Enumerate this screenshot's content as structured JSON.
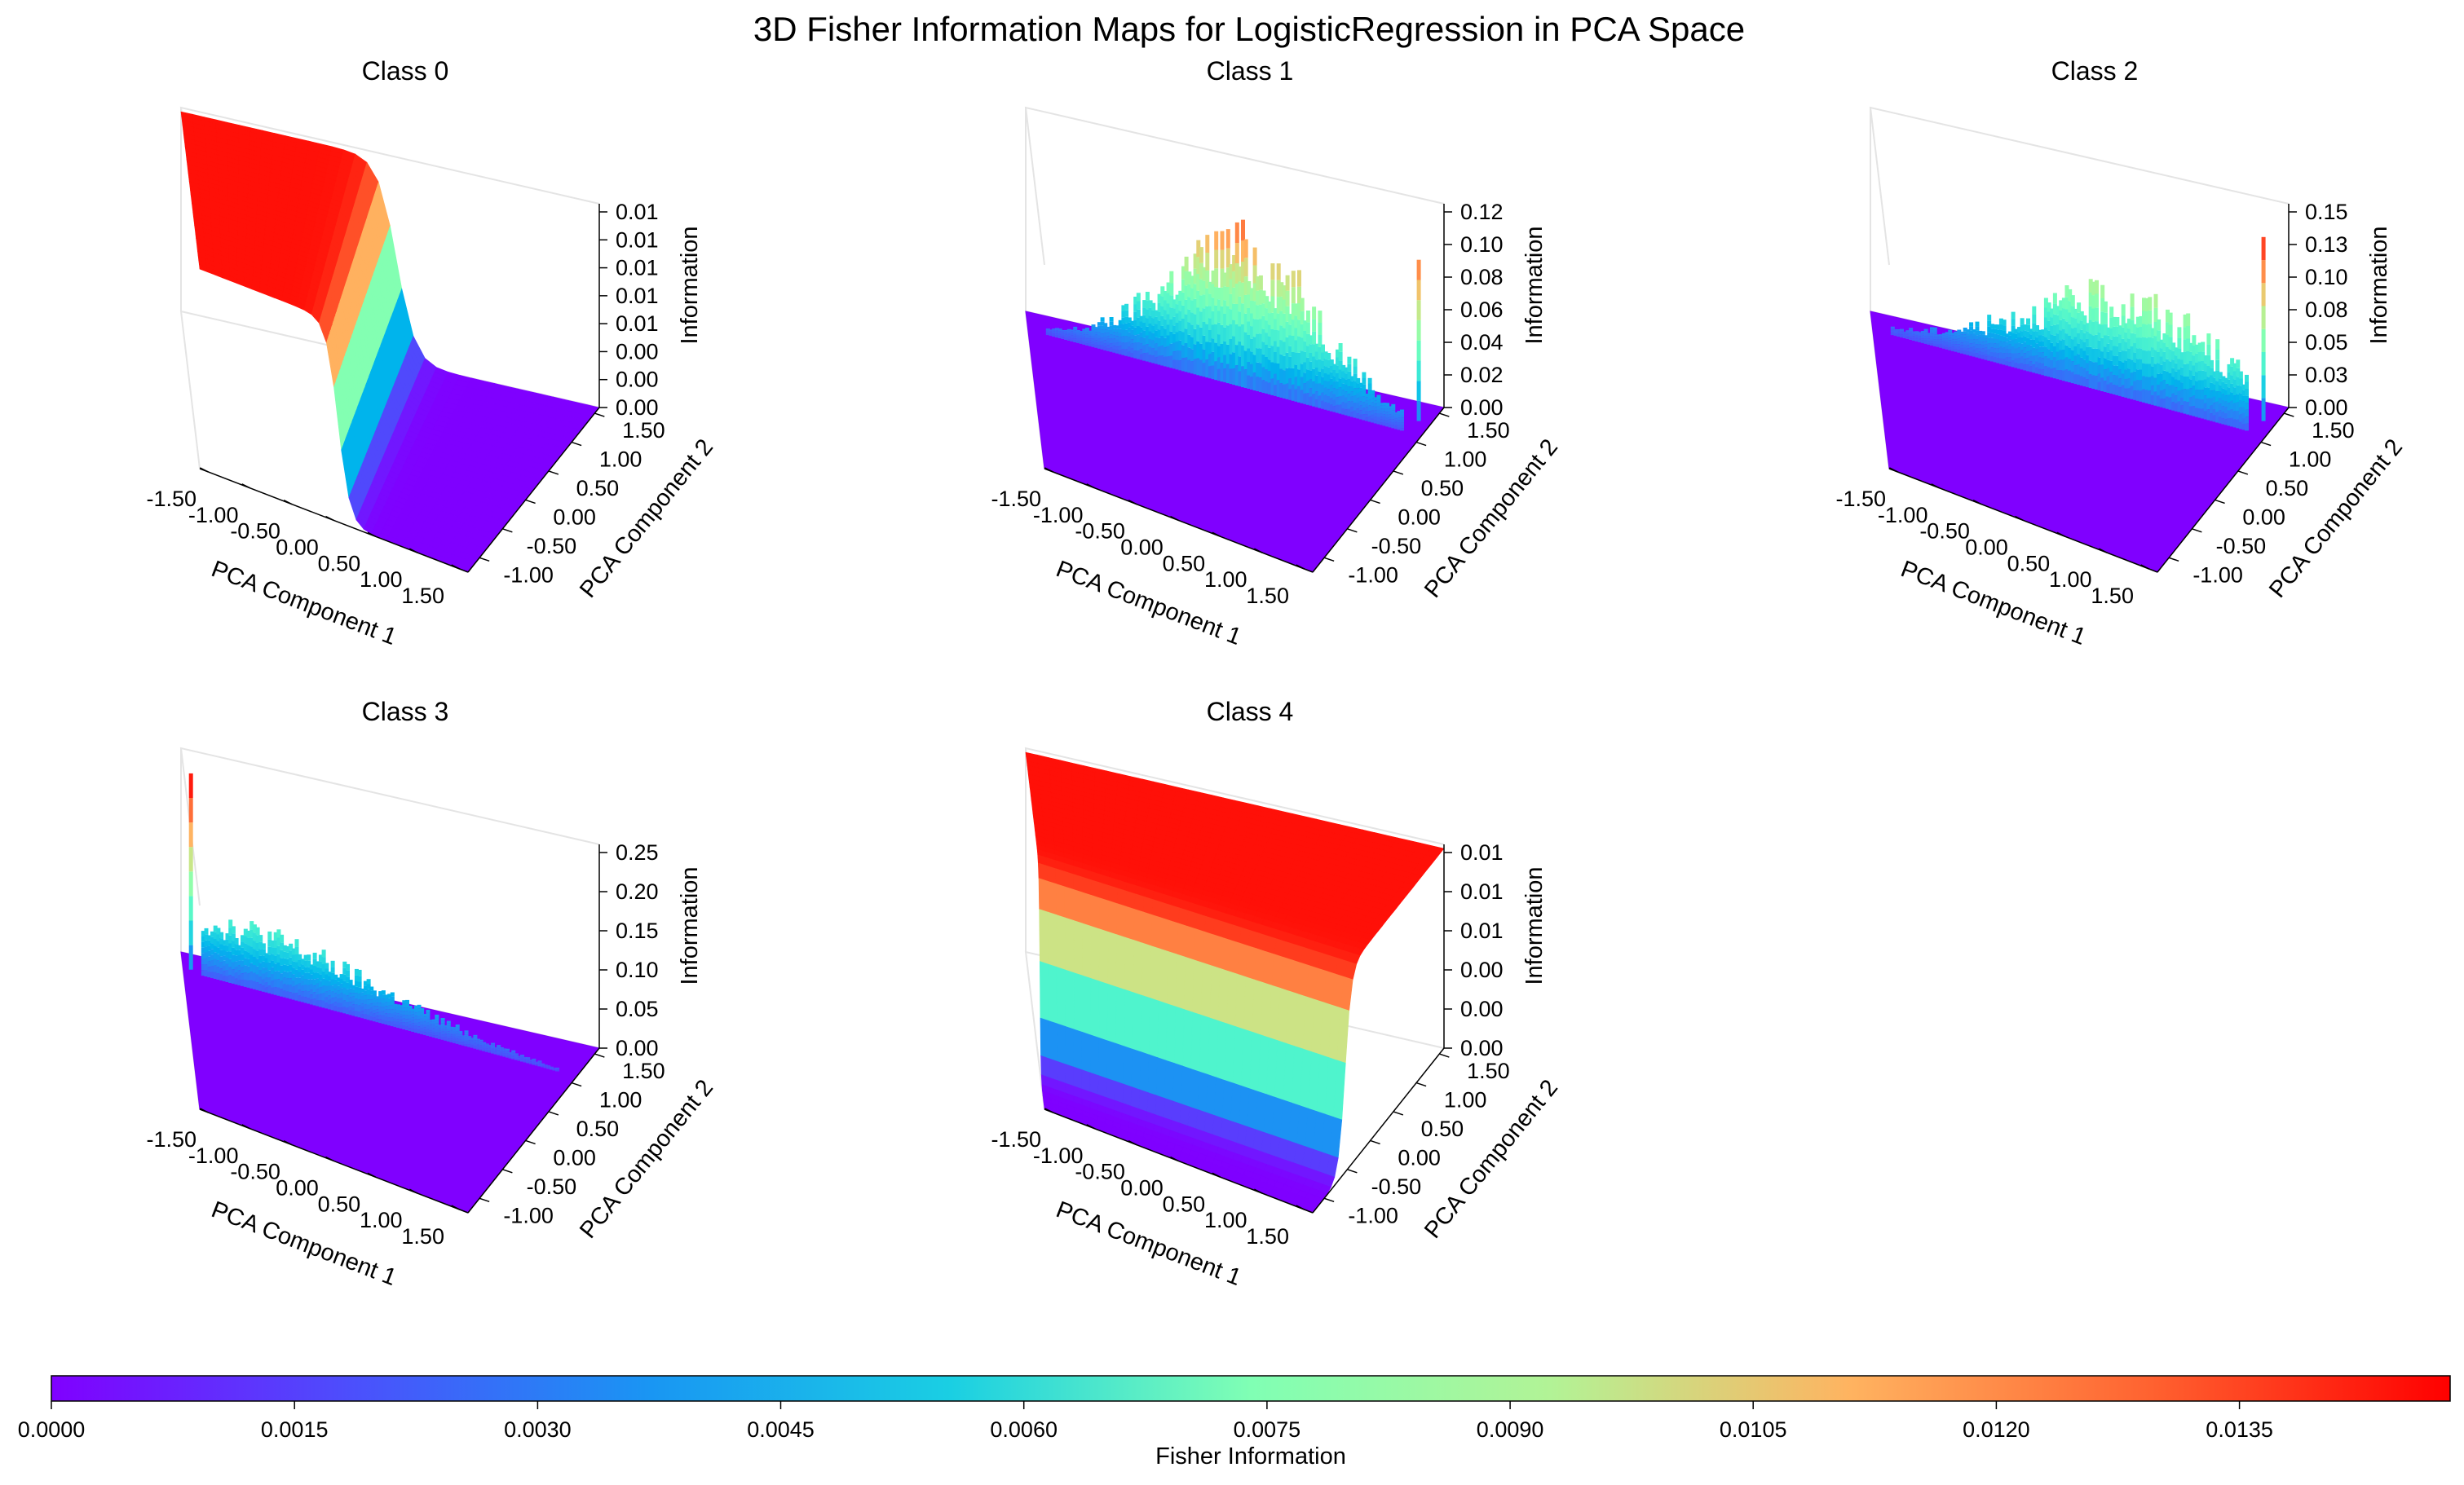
{
  "title": "3D Fisher Information Maps for LogisticRegression in PCA Space",
  "chart_data": [
    {
      "type": "surface3d",
      "title": "Class 0",
      "xlabel": "PCA Component 1",
      "ylabel": "PCA Component 2",
      "zlabel": "Information",
      "x_ticks": [
        "-1.50",
        "-1.00",
        "-0.50",
        "0.00",
        "0.50",
        "1.00",
        "1.50"
      ],
      "y_ticks": [
        "-1.00",
        "-0.50",
        "0.00",
        "0.50",
        "1.00",
        "1.50"
      ],
      "z_ticks": [
        "0.00",
        "0.00",
        "0.00",
        "0.01",
        "0.01",
        "0.01",
        "0.01",
        "0.01"
      ],
      "xlim": [
        -1.6,
        1.6
      ],
      "ylim": [
        -1.25,
        1.6
      ],
      "zlim": [
        0,
        0.0148
      ],
      "surface": "step",
      "surface_params": {
        "edge": 0.05,
        "plateau": 0.0145,
        "steepness": 14
      }
    },
    {
      "type": "surface3d",
      "title": "Class 1",
      "xlabel": "PCA Component 1",
      "ylabel": "PCA Component 2",
      "zlabel": "Information",
      "x_ticks": [
        "-1.50",
        "-1.00",
        "-0.50",
        "0.00",
        "0.50",
        "1.00",
        "1.50"
      ],
      "y_ticks": [
        "-1.00",
        "-0.50",
        "0.00",
        "0.50",
        "1.00",
        "1.50"
      ],
      "z_ticks": [
        "0.00",
        "0.02",
        "0.04",
        "0.06",
        "0.08",
        "0.10",
        "0.12"
      ],
      "xlim": [
        -1.6,
        1.6
      ],
      "ylim": [
        -1.25,
        1.6
      ],
      "zlim": [
        0,
        0.12
      ],
      "surface": "spikes",
      "surface_params": {
        "peak": 0.1,
        "center": 0.15,
        "spread": 0.9,
        "side_max": 0.095
      }
    },
    {
      "type": "surface3d",
      "title": "Class 2",
      "xlabel": "PCA Component 1",
      "ylabel": "PCA Component 2",
      "zlabel": "Information",
      "x_ticks": [
        "-1.50",
        "-1.00",
        "-0.50",
        "0.00",
        "0.50",
        "1.00",
        "1.50"
      ],
      "y_ticks": [
        "-1.00",
        "-0.50",
        "0.00",
        "0.50",
        "1.00",
        "1.50"
      ],
      "z_ticks": [
        "0.00",
        "0.03",
        "0.05",
        "0.08",
        "0.10",
        "0.13",
        "0.15"
      ],
      "xlim": [
        -1.6,
        1.6
      ],
      "ylim": [
        -1.25,
        1.6
      ],
      "zlim": [
        0,
        0.155
      ],
      "surface": "spikes",
      "surface_params": {
        "peak": 0.09,
        "center": 0.5,
        "spread": 1.2,
        "side_max": 0.14
      }
    },
    {
      "type": "surface3d",
      "title": "Class 3",
      "xlabel": "PCA Component 1",
      "ylabel": "PCA Component 2",
      "zlabel": "Information",
      "x_ticks": [
        "-1.50",
        "-1.00",
        "-0.50",
        "0.00",
        "0.50",
        "1.00",
        "1.50"
      ],
      "y_ticks": [
        "-1.00",
        "-0.50",
        "0.00",
        "0.50",
        "1.00",
        "1.50"
      ],
      "z_ticks": [
        "0.00",
        "0.05",
        "0.10",
        "0.15",
        "0.20",
        "0.25"
      ],
      "xlim": [
        -1.6,
        1.6
      ],
      "ylim": [
        -1.25,
        1.6
      ],
      "zlim": [
        0,
        0.27
      ],
      "surface": "spikes",
      "surface_params": {
        "peak": 0.095,
        "center": -1.2,
        "spread": 1.6,
        "side_max": 0.26
      }
    },
    {
      "type": "surface3d",
      "title": "Class 4",
      "xlabel": "PCA Component 1",
      "ylabel": "PCA Component 2",
      "zlabel": "Information",
      "x_ticks": [
        "-1.50",
        "-1.00",
        "-0.50",
        "0.00",
        "0.50",
        "1.00",
        "1.50"
      ],
      "y_ticks": [
        "-1.00",
        "-0.50",
        "0.00",
        "0.50",
        "1.00",
        "1.50"
      ],
      "z_ticks": [
        "0.00",
        "0.00",
        "0.00",
        "0.01",
        "0.01",
        "0.01"
      ],
      "xlim": [
        -1.6,
        1.6
      ],
      "ylim": [
        -1.25,
        1.6
      ],
      "zlim": [
        0,
        0.0148
      ],
      "surface": "step_up",
      "surface_params": {
        "edge": -0.55,
        "plateau": 0.0145,
        "steepness": 14
      }
    }
  ],
  "colorbar": {
    "label": "Fisher Information",
    "colormap": "rainbow",
    "vmin": 0,
    "vmax": 0.0148,
    "ticks": [
      "0.0000",
      "0.0015",
      "0.0030",
      "0.0045",
      "0.0060",
      "0.0075",
      "0.0090",
      "0.0105",
      "0.0120",
      "0.0135"
    ],
    "tick_values": [
      0,
      0.0015,
      0.003,
      0.0045,
      0.006,
      0.0075,
      0.009,
      0.0105,
      0.012,
      0.0135
    ],
    "orientation": "horizontal"
  }
}
